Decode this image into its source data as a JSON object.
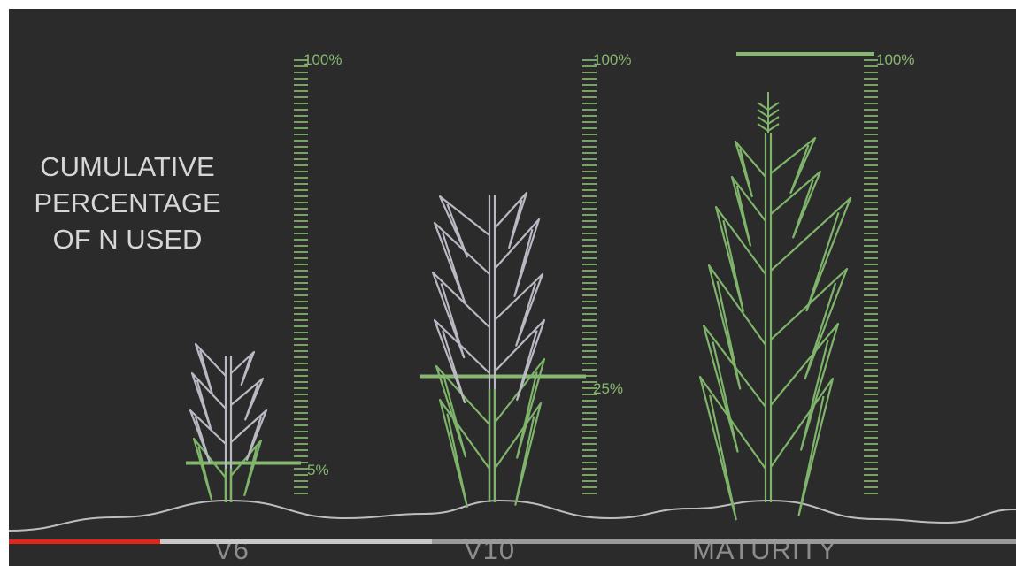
{
  "title_lines": [
    "CUMULATIVE",
    "PERCENTAGE",
    "OF N USED"
  ],
  "stages": [
    {
      "label": "V6",
      "percent_label": "5%",
      "scale_max_label": "100%",
      "n_used_percent": 5
    },
    {
      "label": "V10",
      "percent_label": "25%",
      "scale_max_label": "100%",
      "n_used_percent": 25
    },
    {
      "label": "MATURITY",
      "percent_label": "",
      "scale_max_label": "100%",
      "n_used_percent": 100
    }
  ],
  "player": {
    "played_fraction": 0.15,
    "loaded_fraction": 0.42
  },
  "colors": {
    "background": "#2b2b2b",
    "scale_green": "#86b96f",
    "plant_grey": "#b9b9c4",
    "plant_green": "#7fb56b",
    "title_text": "#d6d6d6",
    "progress_played": "#e1251b"
  }
}
